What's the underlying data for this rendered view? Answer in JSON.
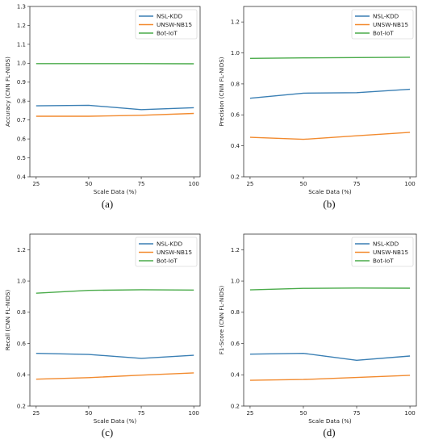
{
  "figure": {
    "captions": [
      "(a)",
      "(b)",
      "(c)",
      "(d)"
    ]
  },
  "colors": {
    "NSL-KDD": "#3a7fb4",
    "UNSW-NB15": "#f28a2e",
    "Bot-IoT": "#4aab4a"
  },
  "chart_data": [
    {
      "type": "line",
      "categories": [
        "25",
        "50",
        "75",
        "100"
      ],
      "x": [
        25,
        50,
        75,
        100
      ],
      "xlabel": "Scale Data (%)",
      "ylabel": "Accuracy (CNN FL-NIDS)",
      "ylim": [
        0.4,
        1.3
      ],
      "yticks": [
        "0.4",
        "0.5",
        "0.6",
        "0.7",
        "0.8",
        "0.9",
        "1.0",
        "1.1",
        "1.2",
        "1.3"
      ],
      "legend_position": "top-right",
      "series": [
        {
          "name": "NSL-KDD",
          "values": [
            0.775,
            0.778,
            0.755,
            0.765
          ]
        },
        {
          "name": "UNSW-NB15",
          "values": [
            0.72,
            0.72,
            0.725,
            0.735
          ]
        },
        {
          "name": "Bot-IoT",
          "values": [
            0.998,
            0.998,
            0.998,
            0.997
          ]
        }
      ]
    },
    {
      "type": "line",
      "categories": [
        "25",
        "50",
        "75",
        "100"
      ],
      "x": [
        25,
        50,
        75,
        100
      ],
      "xlabel": "Scale Data (%)",
      "ylabel": "Precision (CNN FL-NIDS)",
      "ylim": [
        0.2,
        1.3
      ],
      "yticks": [
        "0.2",
        "0.4",
        "0.6",
        "0.8",
        "1.0",
        "1.2"
      ],
      "legend_position": "top-right",
      "series": [
        {
          "name": "NSL-KDD",
          "values": [
            0.707,
            0.74,
            0.743,
            0.765
          ]
        },
        {
          "name": "UNSW-NB15",
          "values": [
            0.455,
            0.442,
            0.465,
            0.487
          ]
        },
        {
          "name": "Bot-IoT",
          "values": [
            0.965,
            0.968,
            0.97,
            0.972
          ]
        }
      ]
    },
    {
      "type": "line",
      "categories": [
        "25",
        "50",
        "75",
        "100"
      ],
      "x": [
        25,
        50,
        75,
        100
      ],
      "xlabel": "Scale Data (%)",
      "ylabel": "Recall (CNN FL-NIDS)",
      "ylim": [
        0.2,
        1.3
      ],
      "yticks": [
        "0.2",
        "0.4",
        "0.6",
        "0.8",
        "1.0",
        "1.2"
      ],
      "legend_position": "top-right",
      "series": [
        {
          "name": "NSL-KDD",
          "values": [
            0.537,
            0.53,
            0.505,
            0.525
          ]
        },
        {
          "name": "UNSW-NB15",
          "values": [
            0.372,
            0.382,
            0.398,
            0.412
          ]
        },
        {
          "name": "Bot-IoT",
          "values": [
            0.922,
            0.94,
            0.944,
            0.942
          ]
        }
      ]
    },
    {
      "type": "line",
      "categories": [
        "25",
        "50",
        "75",
        "100"
      ],
      "x": [
        25,
        50,
        75,
        100
      ],
      "xlabel": "Scale Data (%)",
      "ylabel": "F1-Score (CNN FL-NIDS)",
      "ylim": [
        0.2,
        1.3
      ],
      "yticks": [
        "0.2",
        "0.4",
        "0.6",
        "0.8",
        "1.0",
        "1.2"
      ],
      "legend_position": "top-right",
      "series": [
        {
          "name": "NSL-KDD",
          "values": [
            0.532,
            0.537,
            0.493,
            0.52
          ]
        },
        {
          "name": "UNSW-NB15",
          "values": [
            0.365,
            0.37,
            0.383,
            0.397
          ]
        },
        {
          "name": "Bot-IoT",
          "values": [
            0.943,
            0.953,
            0.955,
            0.954
          ]
        }
      ]
    }
  ]
}
